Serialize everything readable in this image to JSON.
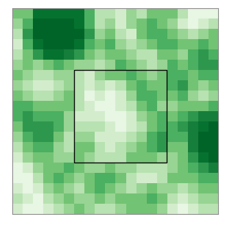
{
  "chart_data": {
    "type": "heatmap",
    "color": "Greens",
    "color_range": [
      0,
      1
    ],
    "tick_labels": false,
    "xlim": [
      0,
      20
    ],
    "ylim": [
      20,
      0
    ],
    "xticks": [],
    "yticks": [],
    "box": {
      "x": [
        6,
        15
      ],
      "y": [
        6,
        15
      ]
    },
    "cells": [
      [
        0.5,
        0.5,
        0.85,
        0.85,
        0.85,
        0.85,
        0.85,
        0.6,
        0.3,
        0.3,
        0.2,
        0.4,
        0.3,
        0.5,
        0.5,
        0.5,
        0.3,
        0.1,
        0.1,
        0.1
      ],
      [
        0.4,
        0.6,
        0.9,
        0.9,
        0.9,
        0.9,
        0.85,
        0.6,
        0.3,
        0.4,
        0.2,
        0.4,
        0.5,
        0.6,
        0.5,
        0.4,
        0.2,
        0.1,
        0.2,
        0.3
      ],
      [
        0.3,
        0.7,
        0.9,
        0.9,
        0.9,
        0.9,
        0.9,
        0.7,
        0.4,
        0.5,
        0.3,
        0.2,
        0.5,
        0.6,
        0.6,
        0.5,
        0.4,
        0.3,
        0.4,
        0.5
      ],
      [
        0.2,
        0.6,
        0.85,
        0.9,
        0.9,
        0.9,
        0.85,
        0.6,
        0.5,
        0.6,
        0.4,
        0.3,
        0.4,
        0.5,
        0.6,
        0.6,
        0.5,
        0.5,
        0.6,
        0.5
      ],
      [
        0.3,
        0.5,
        0.7,
        0.85,
        0.85,
        0.8,
        0.7,
        0.5,
        0.4,
        0.5,
        0.5,
        0.4,
        0.3,
        0.3,
        0.5,
        0.5,
        0.4,
        0.6,
        0.7,
        0.6
      ],
      [
        0.4,
        0.5,
        0.4,
        0.5,
        0.6,
        0.5,
        0.4,
        0.4,
        0.3,
        0.4,
        0.6,
        0.5,
        0.4,
        0.3,
        0.4,
        0.6,
        0.5,
        0.6,
        0.7,
        0.7
      ],
      [
        0.5,
        0.4,
        0.3,
        0.3,
        0.4,
        0.4,
        0.3,
        0.2,
        0.4,
        0.5,
        0.5,
        0.6,
        0.5,
        0.4,
        0.5,
        0.6,
        0.6,
        0.5,
        0.6,
        0.6
      ],
      [
        0.4,
        0.3,
        0.2,
        0.2,
        0.3,
        0.4,
        0.3,
        0.2,
        0.3,
        0.2,
        0.3,
        0.5,
        0.6,
        0.5,
        0.5,
        0.6,
        0.7,
        0.5,
        0.4,
        0.5
      ],
      [
        0.5,
        0.4,
        0.3,
        0.3,
        0.4,
        0.5,
        0.3,
        0.1,
        0.2,
        0.1,
        0.2,
        0.4,
        0.6,
        0.6,
        0.5,
        0.5,
        0.6,
        0.4,
        0.3,
        0.4
      ],
      [
        0.6,
        0.6,
        0.5,
        0.5,
        0.5,
        0.5,
        0.3,
        0.2,
        0.1,
        0.1,
        0.2,
        0.3,
        0.5,
        0.6,
        0.4,
        0.4,
        0.5,
        0.5,
        0.5,
        0.6
      ],
      [
        0.6,
        0.7,
        0.6,
        0.6,
        0.6,
        0.4,
        0.2,
        0.2,
        0.2,
        0.1,
        0.1,
        0.2,
        0.4,
        0.5,
        0.6,
        0.5,
        0.6,
        0.7,
        0.8,
        0.8
      ],
      [
        0.5,
        0.7,
        0.7,
        0.7,
        0.6,
        0.4,
        0.3,
        0.3,
        0.3,
        0.2,
        0.1,
        0.2,
        0.3,
        0.5,
        0.6,
        0.6,
        0.7,
        0.8,
        0.85,
        0.9
      ],
      [
        0.4,
        0.6,
        0.7,
        0.7,
        0.5,
        0.3,
        0.4,
        0.4,
        0.2,
        0.2,
        0.2,
        0.3,
        0.4,
        0.6,
        0.7,
        0.6,
        0.6,
        0.8,
        0.9,
        0.9
      ],
      [
        0.3,
        0.5,
        0.6,
        0.6,
        0.4,
        0.3,
        0.5,
        0.5,
        0.3,
        0.2,
        0.3,
        0.4,
        0.5,
        0.6,
        0.7,
        0.5,
        0.5,
        0.8,
        0.9,
        0.9
      ],
      [
        0.2,
        0.4,
        0.5,
        0.5,
        0.4,
        0.4,
        0.5,
        0.4,
        0.3,
        0.3,
        0.3,
        0.5,
        0.5,
        0.5,
        0.4,
        0.4,
        0.5,
        0.7,
        0.85,
        0.9
      ],
      [
        0.1,
        0.2,
        0.4,
        0.5,
        0.5,
        0.6,
        0.5,
        0.4,
        0.4,
        0.5,
        0.4,
        0.4,
        0.3,
        0.3,
        0.3,
        0.4,
        0.5,
        0.6,
        0.7,
        0.8
      ],
      [
        0.1,
        0.1,
        0.3,
        0.5,
        0.6,
        0.5,
        0.4,
        0.5,
        0.6,
        0.6,
        0.5,
        0.3,
        0.2,
        0.2,
        0.3,
        0.5,
        0.5,
        0.5,
        0.6,
        0.6
      ],
      [
        0.2,
        0.1,
        0.2,
        0.4,
        0.5,
        0.4,
        0.3,
        0.5,
        0.6,
        0.5,
        0.4,
        0.3,
        0.4,
        0.5,
        0.4,
        0.4,
        0.3,
        0.4,
        0.5,
        0.5
      ],
      [
        0.3,
        0.2,
        0.1,
        0.3,
        0.4,
        0.5,
        0.4,
        0.4,
        0.5,
        0.4,
        0.5,
        0.5,
        0.5,
        0.6,
        0.5,
        0.3,
        0.2,
        0.3,
        0.4,
        0.4
      ],
      [
        0.2,
        0.1,
        0.1,
        0.2,
        0.3,
        0.4,
        0.5,
        0.4,
        0.3,
        0.3,
        0.4,
        0.5,
        0.5,
        0.5,
        0.4,
        0.2,
        0.1,
        0.2,
        0.3,
        0.3
      ]
    ]
  }
}
